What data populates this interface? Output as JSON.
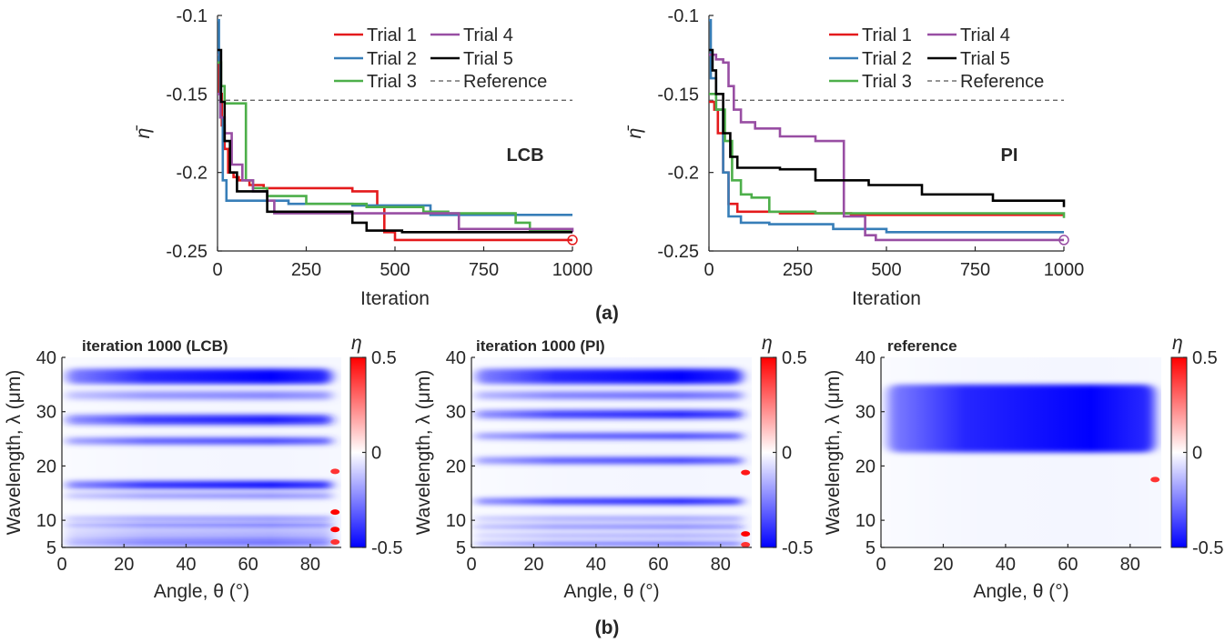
{
  "captions": {
    "a": "(a)",
    "b": "(b)"
  },
  "chart_data": [
    {
      "type": "line",
      "annotation": "LCB",
      "xlabel": "Iteration",
      "ylabel": "η̄",
      "xlim": [
        0,
        1000
      ],
      "ylim": [
        -0.25,
        -0.1
      ],
      "xticks": [
        "0",
        "250",
        "500",
        "750",
        "1000"
      ],
      "yticks": [
        "-0.1",
        "-0.15",
        "-0.2",
        "-0.25"
      ],
      "legend_position": "top-right",
      "reference": {
        "name": "Reference",
        "value": -0.154
      },
      "series": [
        {
          "name": "Trial 1",
          "color": "#e41a1c",
          "points": [
            [
              0,
              -0.125
            ],
            [
              5,
              -0.15
            ],
            [
              12,
              -0.17
            ],
            [
              20,
              -0.185
            ],
            [
              30,
              -0.2
            ],
            [
              45,
              -0.203
            ],
            [
              60,
              -0.205
            ],
            [
              90,
              -0.208
            ],
            [
              130,
              -0.21
            ],
            [
              380,
              -0.212
            ],
            [
              450,
              -0.222
            ],
            [
              470,
              -0.238
            ],
            [
              500,
              -0.243
            ],
            [
              1000,
              -0.243
            ]
          ],
          "final_marker": true
        },
        {
          "name": "Trial 2",
          "color": "#377eb8",
          "points": [
            [
              0,
              -0.103
            ],
            [
              4,
              -0.13
            ],
            [
              8,
              -0.165
            ],
            [
              15,
              -0.205
            ],
            [
              25,
              -0.218
            ],
            [
              60,
              -0.218
            ],
            [
              130,
              -0.218
            ],
            [
              200,
              -0.22
            ],
            [
              380,
              -0.221
            ],
            [
              600,
              -0.227
            ],
            [
              1000,
              -0.227
            ]
          ]
        },
        {
          "name": "Trial 3",
          "color": "#4daf4a",
          "points": [
            [
              0,
              -0.13
            ],
            [
              10,
              -0.145
            ],
            [
              20,
              -0.156
            ],
            [
              60,
              -0.156
            ],
            [
              80,
              -0.205
            ],
            [
              100,
              -0.21
            ],
            [
              140,
              -0.215
            ],
            [
              250,
              -0.22
            ],
            [
              420,
              -0.222
            ],
            [
              580,
              -0.225
            ],
            [
              650,
              -0.226
            ],
            [
              840,
              -0.232
            ],
            [
              880,
              -0.237
            ],
            [
              1000,
              -0.237
            ]
          ]
        },
        {
          "name": "Trial 4",
          "color": "#984ea3",
          "points": [
            [
              0,
              -0.15
            ],
            [
              8,
              -0.165
            ],
            [
              20,
              -0.175
            ],
            [
              40,
              -0.195
            ],
            [
              70,
              -0.205
            ],
            [
              100,
              -0.212
            ],
            [
              140,
              -0.218
            ],
            [
              160,
              -0.226
            ],
            [
              380,
              -0.226
            ],
            [
              680,
              -0.236
            ],
            [
              1000,
              -0.238
            ]
          ]
        },
        {
          "name": "Trial 5",
          "color": "#000000",
          "points": [
            [
              0,
              -0.122
            ],
            [
              10,
              -0.155
            ],
            [
              20,
              -0.18
            ],
            [
              35,
              -0.2
            ],
            [
              55,
              -0.212
            ],
            [
              90,
              -0.212
            ],
            [
              140,
              -0.225
            ],
            [
              300,
              -0.225
            ],
            [
              380,
              -0.232
            ],
            [
              420,
              -0.237
            ],
            [
              520,
              -0.238
            ],
            [
              1000,
              -0.238
            ]
          ]
        }
      ]
    },
    {
      "type": "line",
      "annotation": "PI",
      "xlabel": "Iteration",
      "ylabel": "η̄",
      "xlim": [
        0,
        1000
      ],
      "ylim": [
        -0.25,
        -0.1
      ],
      "xticks": [
        "0",
        "250",
        "500",
        "750",
        "1000"
      ],
      "yticks": [
        "-0.1",
        "-0.15",
        "-0.2",
        "-0.25"
      ],
      "legend_position": "top-right",
      "reference": {
        "name": "Reference",
        "value": -0.154
      },
      "series": [
        {
          "name": "Trial 1",
          "color": "#e41a1c",
          "points": [
            [
              0,
              -0.155
            ],
            [
              15,
              -0.16
            ],
            [
              25,
              -0.175
            ],
            [
              40,
              -0.2
            ],
            [
              55,
              -0.22
            ],
            [
              80,
              -0.225
            ],
            [
              200,
              -0.226
            ],
            [
              400,
              -0.227
            ],
            [
              1000,
              -0.227
            ]
          ]
        },
        {
          "name": "Trial 2",
          "color": "#377eb8",
          "points": [
            [
              0,
              -0.103
            ],
            [
              5,
              -0.14
            ],
            [
              20,
              -0.16
            ],
            [
              40,
              -0.2
            ],
            [
              55,
              -0.228
            ],
            [
              90,
              -0.232
            ],
            [
              170,
              -0.233
            ],
            [
              350,
              -0.236
            ],
            [
              500,
              -0.238
            ],
            [
              1000,
              -0.238
            ]
          ]
        },
        {
          "name": "Trial 3",
          "color": "#4daf4a",
          "points": [
            [
              0,
              -0.15
            ],
            [
              20,
              -0.16
            ],
            [
              45,
              -0.18
            ],
            [
              65,
              -0.205
            ],
            [
              90,
              -0.214
            ],
            [
              120,
              -0.216
            ],
            [
              170,
              -0.225
            ],
            [
              300,
              -0.226
            ],
            [
              1000,
              -0.229
            ]
          ]
        },
        {
          "name": "Trial 4",
          "color": "#984ea3",
          "points": [
            [
              0,
              -0.125
            ],
            [
              20,
              -0.128
            ],
            [
              40,
              -0.13
            ],
            [
              55,
              -0.145
            ],
            [
              70,
              -0.16
            ],
            [
              90,
              -0.168
            ],
            [
              130,
              -0.172
            ],
            [
              200,
              -0.177
            ],
            [
              300,
              -0.18
            ],
            [
              375,
              -0.18
            ],
            [
              380,
              -0.228
            ],
            [
              440,
              -0.24
            ],
            [
              470,
              -0.243
            ],
            [
              1000,
              -0.243
            ]
          ],
          "final_marker": true
        },
        {
          "name": "Trial 5",
          "color": "#000000",
          "points": [
            [
              0,
              -0.122
            ],
            [
              10,
              -0.135
            ],
            [
              20,
              -0.15
            ],
            [
              40,
              -0.175
            ],
            [
              60,
              -0.19
            ],
            [
              80,
              -0.197
            ],
            [
              200,
              -0.198
            ],
            [
              300,
              -0.205
            ],
            [
              450,
              -0.208
            ],
            [
              600,
              -0.214
            ],
            [
              800,
              -0.218
            ],
            [
              1000,
              -0.222
            ]
          ]
        }
      ]
    },
    {
      "type": "heatmap",
      "title": "iteration 1000 (LCB)",
      "xlabel": "Angle, θ (°)",
      "ylabel": "Wavelength, λ (μm)",
      "xlim": [
        0,
        90
      ],
      "ylim": [
        5,
        40
      ],
      "xticks": [
        "0",
        "20",
        "40",
        "60",
        "80"
      ],
      "yticks": [
        "5",
        "10",
        "20",
        "30",
        "40"
      ],
      "colorbar": {
        "label": "η",
        "min": -0.5,
        "max": 0.5,
        "ticks": [
          "0.5",
          "0",
          "-0.5"
        ]
      },
      "features": [
        {
          "kind": "band",
          "center": 36.5,
          "width": 2.8,
          "value": -0.5
        },
        {
          "kind": "band",
          "center": 33.0,
          "width": 1.5,
          "value": -0.25
        },
        {
          "kind": "band",
          "center": 28.5,
          "width": 1.8,
          "value": -0.45
        },
        {
          "kind": "band",
          "center": 24.6,
          "width": 1.2,
          "value": -0.4
        },
        {
          "kind": "band",
          "center": 16.5,
          "width": 1.4,
          "value": -0.5
        },
        {
          "kind": "band",
          "center": 14.5,
          "width": 0.8,
          "value": -0.3
        },
        {
          "kind": "band",
          "center": 10.3,
          "width": 0.5,
          "value": -0.4
        },
        {
          "kind": "band",
          "center": 9.0,
          "width": 0.45,
          "value": -0.5
        },
        {
          "kind": "band",
          "center": 7.7,
          "width": 0.35,
          "value": -0.3
        },
        {
          "kind": "band",
          "center": 6.6,
          "width": 0.35,
          "value": -0.45
        },
        {
          "kind": "band",
          "center": 5.6,
          "width": 0.3,
          "value": -0.5
        },
        {
          "kind": "spot",
          "angle": 88,
          "wavelength": 19.0,
          "value": 0.4
        },
        {
          "kind": "spot",
          "angle": 88,
          "wavelength": 11.5,
          "value": 0.5
        },
        {
          "kind": "spot",
          "angle": 88,
          "wavelength": 8.3,
          "value": 0.5
        },
        {
          "kind": "spot",
          "angle": 88,
          "wavelength": 6.0,
          "value": 0.4
        }
      ]
    },
    {
      "type": "heatmap",
      "title": "iteration 1000 (PI)",
      "xlabel": "Angle, θ (°)",
      "ylabel": "Wavelength, λ (μm)",
      "xlim": [
        0,
        90
      ],
      "ylim": [
        5,
        40
      ],
      "xticks": [
        "0",
        "20",
        "40",
        "60",
        "80"
      ],
      "yticks": [
        "5",
        "10",
        "20",
        "30",
        "40"
      ],
      "colorbar": {
        "label": "η",
        "min": -0.5,
        "max": 0.5,
        "ticks": [
          "0.5",
          "0",
          "-0.5"
        ]
      },
      "features": [
        {
          "kind": "band",
          "center": 36.5,
          "width": 2.8,
          "value": -0.5
        },
        {
          "kind": "band",
          "center": 33.0,
          "width": 1.4,
          "value": -0.3
        },
        {
          "kind": "band",
          "center": 29.5,
          "width": 1.5,
          "value": -0.45
        },
        {
          "kind": "band",
          "center": 25.5,
          "width": 1.1,
          "value": -0.4
        },
        {
          "kind": "band",
          "center": 21.0,
          "width": 1.2,
          "value": -0.4
        },
        {
          "kind": "band",
          "center": 13.5,
          "width": 1.1,
          "value": -0.5
        },
        {
          "kind": "band",
          "center": 10.3,
          "width": 0.5,
          "value": -0.35
        },
        {
          "kind": "band",
          "center": 8.8,
          "width": 0.4,
          "value": -0.45
        },
        {
          "kind": "band",
          "center": 7.2,
          "width": 0.35,
          "value": -0.3
        },
        {
          "kind": "band",
          "center": 5.7,
          "width": 0.3,
          "value": -0.5
        },
        {
          "kind": "spot",
          "angle": 88,
          "wavelength": 18.8,
          "value": 0.45
        },
        {
          "kind": "spot",
          "angle": 88,
          "wavelength": 7.5,
          "value": 0.5
        },
        {
          "kind": "spot",
          "angle": 88,
          "wavelength": 5.5,
          "value": 0.4
        }
      ]
    },
    {
      "type": "heatmap",
      "title": "reference",
      "xlabel": "Angle, θ (°)",
      "ylabel": "Wavelength, λ (μm)",
      "xlim": [
        0,
        90
      ],
      "ylim": [
        5,
        40
      ],
      "xticks": [
        "0",
        "20",
        "40",
        "60",
        "80"
      ],
      "yticks": [
        "5",
        "10",
        "20",
        "30",
        "40"
      ],
      "colorbar": {
        "label": "η",
        "min": -0.5,
        "max": 0.5,
        "ticks": [
          "0.5",
          "0",
          "-0.5"
        ]
      },
      "features": [
        {
          "kind": "block",
          "wl_min": 22.5,
          "wl_max": 35.0,
          "angle_max": 88,
          "value": -0.5
        },
        {
          "kind": "spot",
          "angle": 88,
          "wavelength": 17.5,
          "value": 0.4
        }
      ]
    }
  ]
}
